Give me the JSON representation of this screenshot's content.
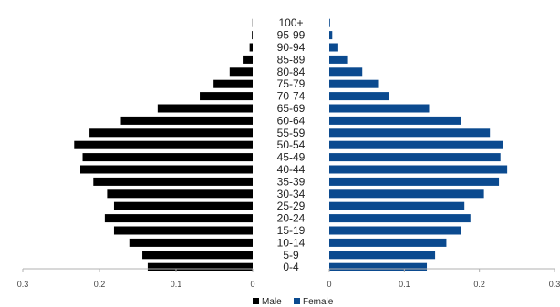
{
  "chart_data": {
    "type": "bar",
    "orientation": "horizontal-population-pyramid",
    "title": "",
    "xlabel": "",
    "ylabel": "",
    "categories": [
      "0-4",
      "5-9",
      "10-14",
      "15-19",
      "20-24",
      "25-29",
      "30-34",
      "35-39",
      "40-44",
      "45-49",
      "50-54",
      "55-59",
      "60-64",
      "65-69",
      "70-74",
      "75-79",
      "80-84",
      "85-89",
      "90-94",
      "95-99",
      "100+"
    ],
    "series": [
      {
        "name": "Male",
        "color": "#000000",
        "side": "left",
        "values": [
          0.137,
          0.144,
          0.161,
          0.181,
          0.193,
          0.181,
          0.19,
          0.208,
          0.225,
          0.222,
          0.233,
          0.213,
          0.172,
          0.124,
          0.069,
          0.051,
          0.03,
          0.013,
          0.004,
          0.001,
          0.0003
        ]
      },
      {
        "name": "Female",
        "color": "#0b4a8f",
        "side": "right",
        "values": [
          0.13,
          0.141,
          0.156,
          0.176,
          0.188,
          0.18,
          0.206,
          0.226,
          0.237,
          0.228,
          0.231,
          0.214,
          0.175,
          0.133,
          0.079,
          0.065,
          0.044,
          0.025,
          0.012,
          0.004,
          0.001
        ]
      }
    ],
    "xlim_each_side": [
      0,
      0.3
    ],
    "tick_labels": [
      "0.3",
      "0.2",
      "0.1",
      "0",
      "0",
      "0.1",
      "0.2",
      "0.3"
    ],
    "legend": {
      "position": "bottom",
      "items": [
        "Male",
        "Female"
      ]
    },
    "grid": false
  }
}
